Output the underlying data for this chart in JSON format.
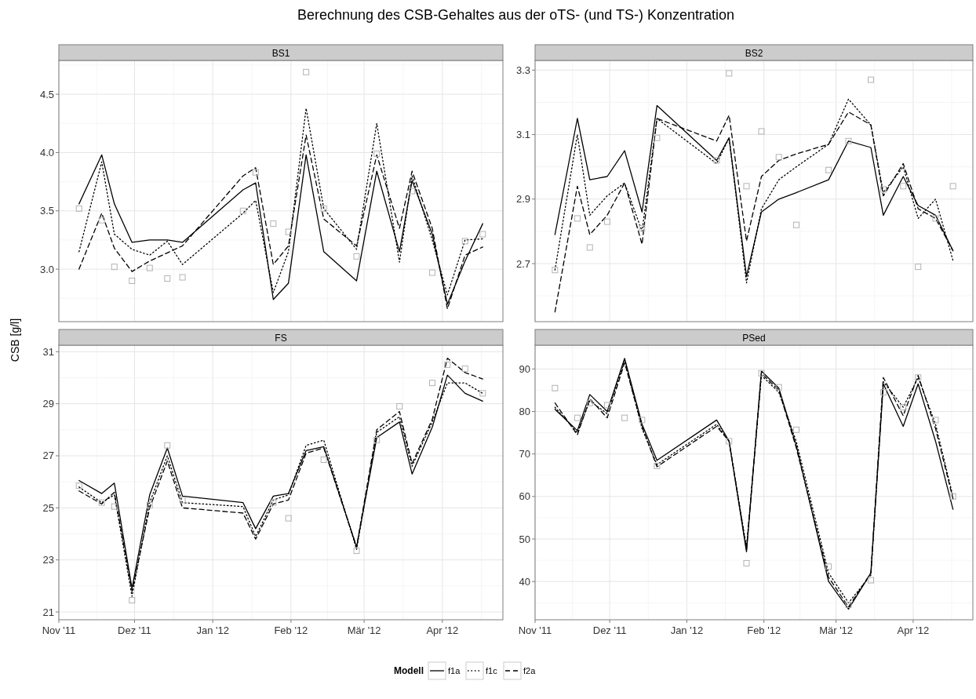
{
  "chart_data": [
    {
      "type": "line",
      "title": "BS1",
      "ylabel": "CSB [g/l]",
      "legend_title": "Modell",
      "legend": "bottom",
      "grid": true,
      "tick_labels": "y",
      "annotations": [
        "Berechnung des CSB-Gehaltes aus der oTS- (und TS-) Konzentration"
      ],
      "x": [
        "2011-11-09",
        "2011-11-18",
        "2011-11-23",
        "2011-11-30",
        "2011-12-07",
        "2011-12-14",
        "2011-12-20",
        "2012-01-13",
        "2012-01-18",
        "2012-01-25",
        "2012-01-31",
        "2012-02-07",
        "2012-02-14",
        "2012-02-27",
        "2012-03-06",
        "2012-03-15",
        "2012-03-20",
        "2012-03-28",
        "2012-04-03",
        "2012-04-10",
        "2012-04-17"
      ],
      "xlim": [
        "2011-11-01",
        "2012-04-25"
      ],
      "xticks": [
        {
          "value": "2011-11-01",
          "label": null
        },
        {
          "value": "2011-12-01",
          "label": null
        },
        {
          "value": "2012-01-01",
          "label": null
        },
        {
          "value": "2012-02-01",
          "label": null
        },
        {
          "value": "2012-03-01",
          "label": null
        },
        {
          "value": "2012-04-01",
          "label": null
        }
      ],
      "ylim": [
        2.55,
        4.79
      ],
      "yticks": [
        {
          "value": 3,
          "label": "3.0"
        },
        3.5,
        {
          "value": 4,
          "label": "4.0"
        },
        4.5
      ],
      "series": [
        {
          "name": "f1a",
          "color": "#000000",
          "line_style": "solid",
          "values": [
            3.56,
            3.98,
            3.56,
            3.23,
            3.25,
            3.25,
            3.23,
            3.68,
            3.74,
            2.74,
            2.88,
            3.98,
            3.15,
            2.9,
            3.84,
            3.15,
            3.76,
            3.3,
            2.7,
            3.07,
            3.39
          ]
        },
        {
          "name": "f1c",
          "color": "#000000",
          "line_style": "dotted",
          "values": [
            3.15,
            3.92,
            3.3,
            3.17,
            3.12,
            3.24,
            3.04,
            3.48,
            3.59,
            2.8,
            3.15,
            4.38,
            3.52,
            3.17,
            4.25,
            3.06,
            3.8,
            3.25,
            2.78,
            3.25,
            3.26
          ]
        },
        {
          "name": "f2a",
          "color": "#000000",
          "line_style": "dashed",
          "values": [
            3.0,
            3.48,
            3.18,
            2.98,
            3.07,
            3.14,
            3.2,
            3.8,
            3.87,
            3.04,
            3.2,
            4.15,
            3.43,
            3.2,
            3.98,
            3.35,
            3.84,
            3.35,
            2.66,
            3.12,
            3.19
          ]
        },
        {
          "type": "scatter",
          "color": "#b3b3b3",
          "marker": "square",
          "values": [
            3.52,
            3.42,
            3.02,
            2.9,
            3.01,
            2.92,
            2.93,
            3.5,
            3.83,
            3.39,
            3.32,
            4.69,
            3.52,
            3.11,
            3.99,
            null,
            3.67,
            2.97,
            null,
            3.24,
            3.3
          ]
        }
      ]
    },
    {
      "type": "line",
      "title": "BS2",
      "grid": true,
      "tick_labels": "y",
      "x": [
        "2011-11-09",
        "2011-11-18",
        "2011-11-23",
        "2011-11-30",
        "2011-12-07",
        "2011-12-14",
        "2011-12-20",
        "2012-01-13",
        "2012-01-18",
        "2012-01-25",
        "2012-01-31",
        "2012-02-07",
        "2012-02-14",
        "2012-02-27",
        "2012-03-06",
        "2012-03-15",
        "2012-03-20",
        "2012-03-28",
        "2012-04-03",
        "2012-04-10",
        "2012-04-17"
      ],
      "xlim": [
        "2011-11-01",
        "2012-04-25"
      ],
      "xticks": [
        {
          "value": "2011-11-01",
          "label": null
        },
        {
          "value": "2011-12-01",
          "label": null
        },
        {
          "value": "2012-01-01",
          "label": null
        },
        {
          "value": "2012-02-01",
          "label": null
        },
        {
          "value": "2012-03-01",
          "label": null
        },
        {
          "value": "2012-04-01",
          "label": null
        }
      ],
      "ylim": [
        2.52,
        3.33
      ],
      "yticks": [
        2.7,
        2.9,
        3.1,
        3.3
      ],
      "series": [
        {
          "color": "#000000",
          "line_style": "solid",
          "values": [
            2.79,
            3.15,
            2.96,
            2.97,
            3.05,
            2.86,
            3.19,
            3.02,
            3.09,
            2.66,
            2.86,
            2.9,
            2.92,
            2.96,
            3.08,
            3.06,
            2.85,
            2.97,
            2.88,
            2.85,
            2.74
          ]
        },
        {
          "color": "#000000",
          "line_style": "dotted",
          "values": [
            2.68,
            3.1,
            2.85,
            2.91,
            2.95,
            2.8,
            3.15,
            3.01,
            3.09,
            2.64,
            2.87,
            2.96,
            3.0,
            3.07,
            3.21,
            3.13,
            2.92,
            3.0,
            2.84,
            2.9,
            2.71
          ]
        },
        {
          "color": "#000000",
          "line_style": "dashed",
          "values": [
            2.55,
            2.94,
            2.79,
            2.85,
            2.95,
            2.76,
            3.15,
            3.08,
            3.16,
            2.77,
            2.97,
            3.02,
            3.04,
            3.07,
            3.17,
            3.13,
            2.91,
            3.01,
            2.87,
            2.84,
            2.74
          ]
        },
        {
          "type": "scatter",
          "color": "#b3b3b3",
          "marker": "square",
          "values": [
            2.68,
            2.84,
            2.75,
            2.83,
            null,
            2.81,
            3.09,
            3.02,
            3.29,
            2.94,
            3.11,
            3.03,
            2.82,
            2.99,
            3.08,
            3.27,
            2.93,
            2.94,
            2.69,
            2.84,
            2.94
          ]
        }
      ]
    },
    {
      "type": "line",
      "title": "FS",
      "grid": true,
      "x": [
        "2011-11-09",
        "2011-11-18",
        "2011-11-23",
        "2011-11-30",
        "2011-12-07",
        "2011-12-14",
        "2011-12-20",
        "2012-01-13",
        "2012-01-18",
        "2012-01-25",
        "2012-01-31",
        "2012-02-07",
        "2012-02-14",
        "2012-02-27",
        "2012-03-06",
        "2012-03-15",
        "2012-03-20",
        "2012-03-28",
        "2012-04-03",
        "2012-04-10",
        "2012-04-17"
      ],
      "xlim": [
        "2011-11-01",
        "2012-04-25"
      ],
      "xticks": [
        {
          "value": "2011-11-01",
          "label": "Nov '11"
        },
        {
          "value": "2011-12-01",
          "label": "Dez '11"
        },
        {
          "value": "2012-01-01",
          "label": "Jan '12"
        },
        {
          "value": "2012-02-01",
          "label": "Feb '12"
        },
        {
          "value": "2012-03-01",
          "label": "Mär '12"
        },
        {
          "value": "2012-04-01",
          "label": "Apr '12"
        }
      ],
      "ylim": [
        20.7,
        31.25
      ],
      "yticks": [
        21,
        23,
        25,
        27,
        29,
        31
      ],
      "series": [
        {
          "color": "#000000",
          "line_style": "solid",
          "values": [
            26.05,
            25.55,
            25.95,
            21.9,
            25.5,
            27.3,
            25.45,
            25.2,
            24.2,
            25.45,
            25.55,
            27.2,
            27.35,
            23.5,
            27.7,
            28.3,
            26.3,
            28.1,
            30.1,
            29.4,
            29.1
          ]
        },
        {
          "color": "#000000",
          "line_style": "dotted",
          "values": [
            25.8,
            25.2,
            25.5,
            21.6,
            25.2,
            27.0,
            25.2,
            25.05,
            23.9,
            25.3,
            25.5,
            27.4,
            27.6,
            23.4,
            27.9,
            28.5,
            26.6,
            28.3,
            29.8,
            29.8,
            29.4
          ]
        },
        {
          "color": "#000000",
          "line_style": "dashed",
          "values": [
            25.65,
            25.15,
            25.6,
            21.8,
            25.0,
            26.8,
            25.0,
            24.8,
            23.8,
            25.15,
            25.3,
            27.1,
            27.3,
            23.5,
            28.0,
            28.7,
            26.7,
            28.4,
            30.75,
            30.2,
            29.95
          ]
        },
        {
          "type": "scatter",
          "color": "#b3b3b3",
          "marker": "square",
          "values": [
            25.85,
            25.2,
            25.05,
            21.45,
            25.1,
            27.4,
            25.3,
            null,
            null,
            25.2,
            24.6,
            null,
            26.85,
            23.35,
            27.6,
            28.9,
            null,
            29.8,
            30.5,
            30.35,
            29.4
          ]
        }
      ]
    },
    {
      "type": "line",
      "title": "PSed",
      "grid": true,
      "x": [
        "2011-11-09",
        "2011-11-18",
        "2011-11-23",
        "2011-11-30",
        "2011-12-07",
        "2011-12-14",
        "2011-12-20",
        "2012-01-13",
        "2012-01-18",
        "2012-01-25",
        "2012-01-31",
        "2012-02-07",
        "2012-02-14",
        "2012-02-27",
        "2012-03-06",
        "2012-03-15",
        "2012-03-20",
        "2012-03-28",
        "2012-04-03",
        "2012-04-10",
        "2012-04-17"
      ],
      "xlim": [
        "2011-11-01",
        "2012-04-25"
      ],
      "xticks": [
        {
          "value": "2011-11-01",
          "label": "Nov '11"
        },
        {
          "value": "2011-12-01",
          "label": "Dez '11"
        },
        {
          "value": "2012-01-01",
          "label": "Jan '12"
        },
        {
          "value": "2012-02-01",
          "label": "Feb '12"
        },
        {
          "value": "2012-03-01",
          "label": "Mär '12"
        },
        {
          "value": "2012-04-01",
          "label": "Apr '12"
        }
      ],
      "ylim": [
        31,
        95.6
      ],
      "yticks": [
        40,
        50,
        60,
        70,
        80,
        90
      ],
      "series": [
        {
          "color": "#000000",
          "line_style": "solid",
          "values": [
            80.5,
            75.5,
            84,
            80,
            92.5,
            77,
            68.5,
            78,
            73,
            47,
            89.5,
            85.5,
            72,
            40,
            33.5,
            42,
            86.5,
            76.5,
            86.5,
            73,
            57
          ]
        },
        {
          "color": "#000000",
          "line_style": "dotted",
          "values": [
            81,
            75,
            82.5,
            79.5,
            92,
            76,
            67.5,
            77,
            73,
            48,
            88.5,
            84.5,
            73,
            42,
            35,
            41.5,
            87,
            81,
            88,
            77,
            60
          ]
        },
        {
          "color": "#000000",
          "line_style": "dashed",
          "values": [
            82,
            74.5,
            83,
            78.5,
            91.5,
            76.5,
            67,
            76.5,
            73,
            47.5,
            89,
            85,
            71.5,
            41,
            34,
            42,
            88,
            79,
            88.5,
            76,
            59.5
          ]
        },
        {
          "type": "scatter",
          "color": "#b3b3b3",
          "marker": "square",
          "values": [
            85.5,
            78.5,
            82,
            81.5,
            78.5,
            78,
            67.2,
            null,
            73,
            44.3,
            89,
            85.7,
            75.7,
            43.5,
            34.5,
            40.3,
            84.5,
            81,
            88,
            78,
            60
          ]
        }
      ]
    }
  ]
}
